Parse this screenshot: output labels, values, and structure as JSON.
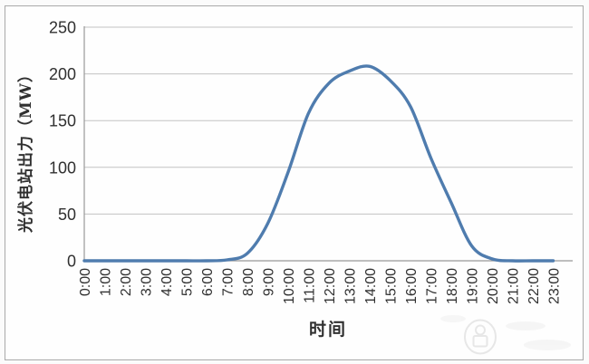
{
  "chart_data": {
    "type": "line",
    "title": "",
    "categories": [
      "0:00",
      "1:00",
      "2:00",
      "3:00",
      "4:00",
      "5:00",
      "6:00",
      "7:00",
      "8:00",
      "9:00",
      "10:00",
      "11:00",
      "12:00",
      "13:00",
      "14:00",
      "15:00",
      "16:00",
      "17:00",
      "18:00",
      "19:00",
      "20:00",
      "21:00",
      "22:00",
      "23:00"
    ],
    "values": [
      0,
      0,
      0,
      0,
      0,
      0,
      0,
      1,
      8,
      40,
      95,
      158,
      190,
      203,
      208,
      193,
      165,
      110,
      62,
      16,
      2,
      0,
      0,
      0
    ],
    "xlabel": "时间",
    "ylabel": "光伏电站出力（MW）",
    "ylim": [
      0,
      250
    ],
    "yticks": [
      0,
      50,
      100,
      150,
      200,
      250
    ],
    "grid": "horizontal-only",
    "legend": "none",
    "line_color": "#4f7cae"
  },
  "colors": {
    "gridline": "#c2c2c2",
    "axis": "#999999",
    "text": "#303030",
    "frame": "#a9a9a9",
    "watermark": "#8f8f8f"
  },
  "watermark": {
    "shape": "circular-seal"
  }
}
